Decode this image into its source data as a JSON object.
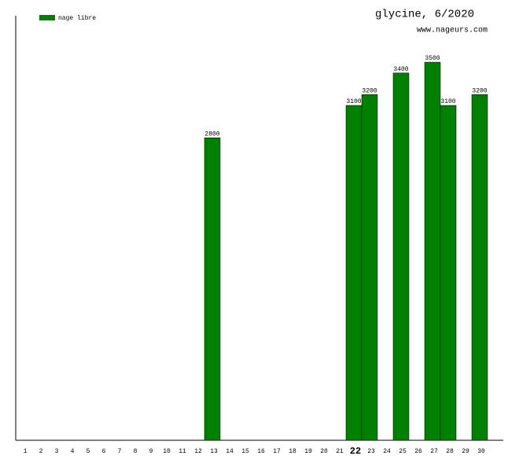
{
  "chart_data": {
    "type": "bar",
    "title": "glycine, 6/2020",
    "subtitle": "www.nageurs.com",
    "categories": [
      "1",
      "2",
      "3",
      "4",
      "5",
      "6",
      "7",
      "8",
      "9",
      "10",
      "11",
      "12",
      "13",
      "14",
      "15",
      "16",
      "17",
      "18",
      "19",
      "20",
      "21",
      "22",
      "23",
      "24",
      "25",
      "26",
      "27",
      "28",
      "29",
      "30"
    ],
    "series": [
      {
        "name": "nage libre",
        "color": "#008000",
        "values": [
          null,
          null,
          null,
          null,
          null,
          null,
          null,
          null,
          null,
          null,
          null,
          null,
          2800,
          null,
          null,
          null,
          null,
          null,
          null,
          null,
          null,
          3100,
          3200,
          null,
          3400,
          null,
          3500,
          3100,
          null,
          3200
        ]
      }
    ],
    "ylim": [
      0,
      3930
    ],
    "highlight": 21,
    "legend": "top-left"
  }
}
